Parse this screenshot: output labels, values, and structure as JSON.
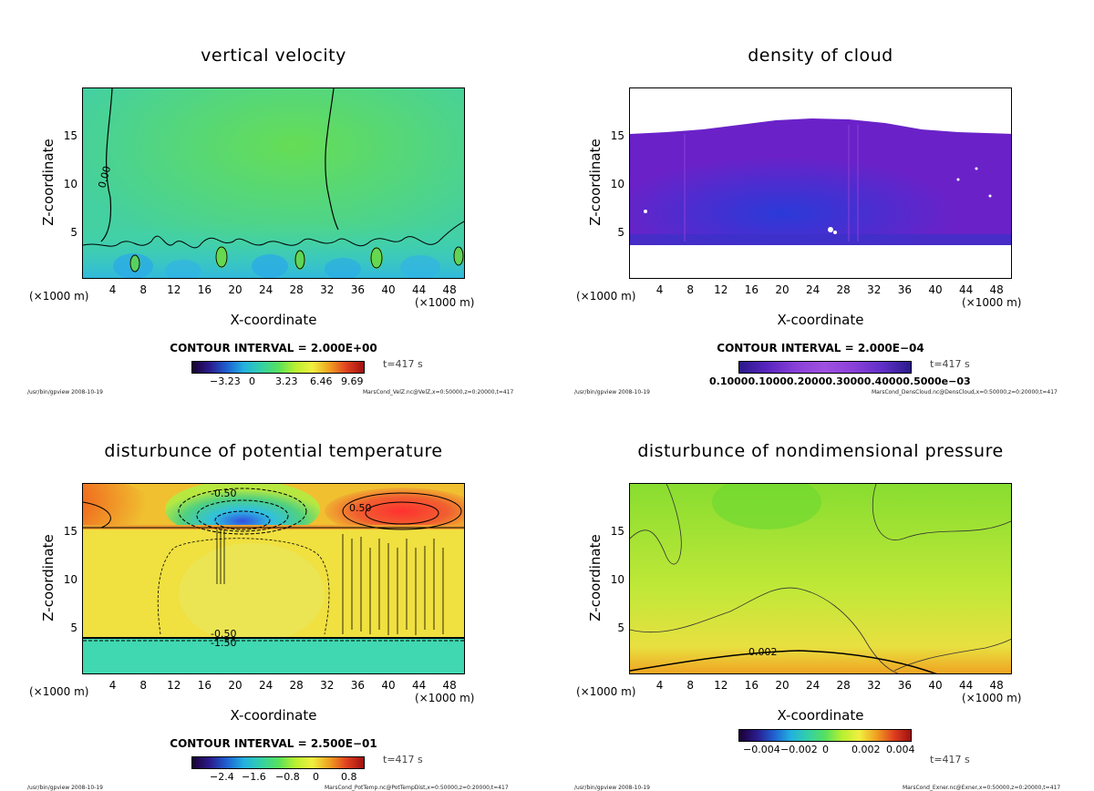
{
  "panels": [
    {
      "title": "vertical velocity",
      "ylabel": "Z-coordinate",
      "xlabel": "X-coordinate",
      "xunit_left": "(×1000 m)",
      "xunit_right": "(×1000 m)",
      "contour": "CONTOUR INTERVAL = 2.000E+00",
      "time": "t=417 s",
      "footer_left": "/usr/bin/gpview  2008-10-19",
      "footer_right": "MarsCond_VelZ.nc@VelZ,x=0:50000,z=0:20000,t=417",
      "cbar_ticks": [
        "−3.23",
        "0",
        "3.23",
        "6.46",
        "9.69"
      ],
      "contour_label": "0.00"
    },
    {
      "title": "density of cloud",
      "ylabel": "Z-coordinate",
      "xlabel": "X-coordinate",
      "xunit_left": "(×1000 m)",
      "xunit_right": "(×1000 m)",
      "contour": "CONTOUR INTERVAL = 2.000E−04",
      "time": "t=417 s",
      "footer_left": "/usr/bin/gpview  2008-10-19",
      "footer_right": "MarsCond_DensCloud.nc@DensCloud,x=0:50000,z=0:20000,t=417",
      "cbar_ticks_text": "0.10000.10000.20000.30000.40000.5000e−03"
    },
    {
      "title": "disturbunce of potential temperature",
      "ylabel": "Z-coordinate",
      "xlabel": "X-coordinate",
      "xunit_left": "(×1000 m)",
      "xunit_right": "(×1000 m)",
      "contour": "CONTOUR INTERVAL = 2.500E−01",
      "time": "t=417 s",
      "footer_left": "/usr/bin/gpview  2008-10-19",
      "footer_right": "MarsCond_PotTemp.nc@PotTempDist,x=0:50000,z=0:20000,t=417",
      "cbar_ticks": [
        "−2.4",
        "−1.6",
        "−0.8",
        "0",
        "0.8"
      ],
      "contour_labels": [
        "-0.50",
        "0.50",
        "-0.50",
        "-1.50"
      ]
    },
    {
      "title": "disturbunce of nondimensional pressure",
      "ylabel": "Z-coordinate",
      "xlabel": "X-coordinate",
      "xunit_left": "(×1000 m)",
      "xunit_right": "(×1000 m)",
      "contour": "",
      "time": "t=417 s",
      "footer_left": "/usr/bin/gpview  2008-10-19",
      "footer_right": "MarsCond_Exner.nc@Exner,x=0:50000,z=0:20000,t=417",
      "cbar_ticks": [
        "−0.004",
        "−0.002",
        "0",
        "0.002",
        "0.004"
      ],
      "contour_label": "0.002"
    }
  ],
  "x_ticks": [
    "4",
    "8",
    "12",
    "16",
    "20",
    "24",
    "28",
    "32",
    "36",
    "40",
    "44",
    "48"
  ],
  "y_ticks": [
    "5",
    "10",
    "15"
  ],
  "chart_data": [
    {
      "type": "heatmap",
      "title": "vertical velocity",
      "xlabel": "X-coordinate",
      "ylabel": "Z-coordinate",
      "xlim": [
        0,
        50
      ],
      "ylim": [
        0,
        20
      ],
      "colorbar": [
        -3.23,
        0,
        3.23,
        6.46,
        9.69
      ],
      "contour_interval": 2.0,
      "time_s": 417
    },
    {
      "type": "heatmap",
      "title": "density of cloud",
      "xlabel": "X-coordinate",
      "ylabel": "Z-coordinate",
      "xlim": [
        0,
        50
      ],
      "ylim": [
        0,
        20
      ],
      "colorbar_scale": "e-03",
      "contour_interval": 0.0002,
      "time_s": 417
    },
    {
      "type": "heatmap",
      "title": "disturbunce of potential temperature",
      "xlabel": "X-coordinate",
      "ylabel": "Z-coordinate",
      "xlim": [
        0,
        50
      ],
      "ylim": [
        0,
        20
      ],
      "colorbar": [
        -2.4,
        -1.6,
        -0.8,
        0,
        0.8
      ],
      "contour_interval": 0.25,
      "time_s": 417
    },
    {
      "type": "heatmap",
      "title": "disturbunce of nondimensional pressure",
      "xlabel": "X-coordinate",
      "ylabel": "Z-coordinate",
      "xlim": [
        0,
        50
      ],
      "ylim": [
        0,
        20
      ],
      "colorbar": [
        -0.004,
        -0.002,
        0,
        0.002,
        0.004
      ],
      "time_s": 417
    }
  ],
  "colors": {
    "rainbow": [
      "#1a0033",
      "#2a1a8a",
      "#1f5fd0",
      "#22b0e0",
      "#33d0a8",
      "#55e060",
      "#b8f030",
      "#f0f040",
      "#f0a020",
      "#e04020",
      "#a01010"
    ]
  }
}
